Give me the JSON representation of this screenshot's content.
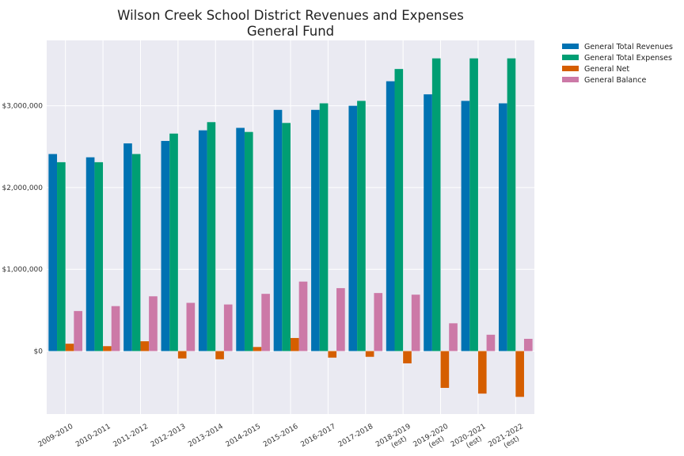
{
  "chart_data": {
    "type": "bar",
    "title": [
      "Wilson Creek School District Revenues and Expenses",
      "General Fund"
    ],
    "xlabel": "",
    "ylabel": "",
    "categories": [
      [
        "2009-2010"
      ],
      [
        "2010-2011"
      ],
      [
        "2011-2012"
      ],
      [
        "2012-2013"
      ],
      [
        "2013-2014"
      ],
      [
        "2014-2015"
      ],
      [
        "2015-2016"
      ],
      [
        "2016-2017"
      ],
      [
        "2017-2018"
      ],
      [
        "2018-2019",
        "(est)"
      ],
      [
        "2019-2020",
        "(est)"
      ],
      [
        "2020-2021",
        "(est)"
      ],
      [
        "2021-2022",
        "(est)"
      ]
    ],
    "series": [
      {
        "name": "General Total Revenues",
        "color": "#0072b2",
        "values": [
          2410000,
          2370000,
          2540000,
          2570000,
          2700000,
          2730000,
          2950000,
          2950000,
          3000000,
          3300000,
          3140000,
          3060000,
          3030000
        ]
      },
      {
        "name": "General Total Expenses",
        "color": "#009e73",
        "values": [
          2310000,
          2310000,
          2410000,
          2660000,
          2800000,
          2680000,
          2790000,
          3030000,
          3060000,
          3450000,
          3580000,
          3580000,
          3580000
        ]
      },
      {
        "name": "General Net",
        "color": "#d55e00",
        "values": [
          90000,
          60000,
          120000,
          -90000,
          -100000,
          50000,
          160000,
          -80000,
          -70000,
          -150000,
          -450000,
          -520000,
          -560000
        ]
      },
      {
        "name": "General Balance",
        "color": "#cc79a7",
        "values": [
          490000,
          550000,
          670000,
          590000,
          570000,
          700000,
          850000,
          770000,
          710000,
          690000,
          340000,
          200000,
          150000
        ]
      }
    ],
    "yticks": [
      0,
      1000000,
      2000000,
      3000000
    ],
    "ytick_labels": [
      "$0",
      "$1,000,000",
      "$2,000,000",
      "$3,000,000"
    ],
    "ylim": [
      -770000,
      3800000
    ],
    "grid": true,
    "legend_position": "outside-right-top"
  }
}
